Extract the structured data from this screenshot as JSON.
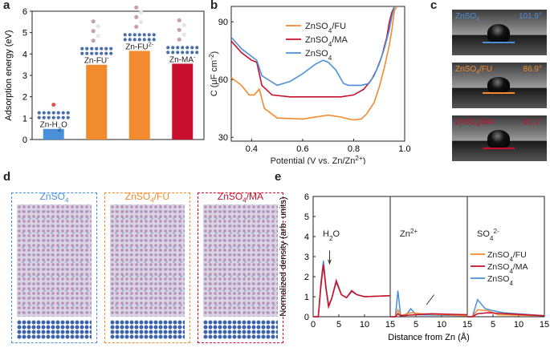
{
  "panels": {
    "a": "a",
    "b": "b",
    "c": "c",
    "d": "d",
    "e": "e"
  },
  "chart_data": [
    {
      "type": "bar",
      "id": "a",
      "ylabel": "Adsorption energy (eV)",
      "ylim": [
        0,
        6
      ],
      "yticks": [
        "0",
        "1",
        "2",
        "3",
        "4",
        "5",
        "6"
      ],
      "categories": [
        "Zn-H2O",
        "Zn-FU-",
        "Zn-FU2-",
        "Zn-MA-"
      ],
      "category_labels": [
        {
          "main": "Zn-H",
          "sub": "2",
          "tail": "O",
          "sup": ""
        },
        {
          "main": "Zn-FU",
          "sub": "",
          "tail": "",
          "sup": "-"
        },
        {
          "main": "Zn-FU",
          "sub": "",
          "tail": "",
          "sup": "2-"
        },
        {
          "main": "Zn-MA",
          "sub": "",
          "tail": "",
          "sup": "-"
        }
      ],
      "values": [
        0.5,
        3.5,
        4.15,
        3.55
      ],
      "colors": [
        "#4a90d9",
        "#f28a2e",
        "#f28a2e",
        "#c8102e"
      ]
    },
    {
      "type": "line",
      "id": "b",
      "xlabel": "Potential (V vs. Zn/Zn2+)",
      "xlabel_parts": {
        "main": "Potential (V vs. Zn/Zn",
        "sup": "2+",
        "tail": ")"
      },
      "ylabel": "C (μF cm-2)",
      "ylabel_parts": {
        "main": "C (μF cm",
        "sup": "-2",
        "tail": ")"
      },
      "xlim": [
        0.32,
        1.0
      ],
      "ylim": [
        28,
        98
      ],
      "xticks": [
        0.4,
        0.6,
        0.8,
        1.0
      ],
      "xtick_labels": [
        "0.4",
        "0.6",
        "0.8",
        "1.0"
      ],
      "yticks": [
        30,
        60,
        90
      ],
      "ytick_labels": [
        "30",
        "60",
        "90"
      ],
      "legend": "top-center",
      "series": [
        {
          "name": "ZnSO4/FU",
          "label": {
            "main": "ZnSO",
            "sub": "4",
            "tail": "/FU"
          },
          "color": "#f28a2e",
          "x": [
            0.32,
            0.36,
            0.39,
            0.41,
            0.43,
            0.45,
            0.5,
            0.6,
            0.7,
            0.75,
            0.78,
            0.8,
            0.83,
            0.85,
            0.88,
            0.9,
            0.92,
            0.94,
            0.95,
            0.96,
            0.97
          ],
          "y": [
            61,
            57,
            52,
            52,
            55,
            45,
            40,
            39.5,
            41.5,
            40.5,
            39.5,
            39,
            39.5,
            42,
            48,
            56,
            66,
            78,
            86,
            96,
            98
          ]
        },
        {
          "name": "ZnSO4/MA",
          "label": {
            "main": "ZnSO",
            "sub": "4",
            "tail": "/MA"
          },
          "color": "#c8102e",
          "x": [
            0.32,
            0.36,
            0.4,
            0.42,
            0.44,
            0.48,
            0.55,
            0.65,
            0.75,
            0.8,
            0.84,
            0.87,
            0.89,
            0.91,
            0.93,
            0.94,
            0.95,
            0.96
          ],
          "y": [
            80,
            74,
            70,
            69,
            57,
            52,
            51,
            51,
            51,
            52,
            55,
            60,
            65,
            72,
            82,
            90,
            95,
            98
          ]
        },
        {
          "name": "ZnSO4",
          "label": {
            "main": "ZnSO",
            "sub": "4",
            "tail": ""
          },
          "color": "#4a90d9",
          "x": [
            0.32,
            0.36,
            0.4,
            0.42,
            0.44,
            0.5,
            0.55,
            0.6,
            0.65,
            0.68,
            0.7,
            0.73,
            0.76,
            0.78,
            0.8,
            0.83,
            0.86,
            0.88,
            0.9,
            0.92,
            0.94,
            0.95,
            0.96
          ],
          "y": [
            82,
            76,
            72,
            70,
            62,
            57,
            59,
            63,
            68,
            70,
            69,
            65,
            58,
            57,
            57,
            57,
            58,
            62,
            68,
            76,
            86,
            93,
            98
          ]
        }
      ]
    },
    {
      "type": "line",
      "id": "e",
      "xlabel": "Distance from Zn (Å)",
      "ylabel": "Normalized density (arb. units)",
      "ylim": [
        0,
        6
      ],
      "yticks": [
        "0",
        "1",
        "2",
        "3",
        "4",
        "5",
        "6"
      ],
      "xtick_labels": [
        "0",
        "5",
        "10",
        "15",
        "5",
        "10",
        "15",
        "5",
        "10",
        "15"
      ],
      "sections": [
        {
          "label": {
            "main": "H",
            "sub": "2",
            "tail": "O",
            "sup": ""
          }
        },
        {
          "label": {
            "main": "Zn",
            "sub": "",
            "tail": "",
            "sup": "2+"
          }
        },
        {
          "label": {
            "main": "SO",
            "sub": "4",
            "tail": "",
            "sup": "2-"
          }
        }
      ],
      "legend": "center-right",
      "series": [
        {
          "name": "ZnSO4/FU",
          "color": "#f28a2e"
        },
        {
          "name": "ZnSO4/MA",
          "color": "#c8102e"
        },
        {
          "name": "ZnSO4",
          "color": "#4a90d9"
        }
      ]
    }
  ],
  "contact_angle": [
    {
      "label": "ZnSO4",
      "sub": "4",
      "main": "ZnSO",
      "tail": "",
      "angle": "101.9°",
      "color": "#4a90d9"
    },
    {
      "label": "ZnSO4/FU",
      "sub": "4",
      "main": "ZnSO",
      "tail": "/FU",
      "angle": "86.9°",
      "color": "#f28a2e"
    },
    {
      "label": "ZnSO4/MA",
      "sub": "4",
      "main": "ZnSO",
      "tail": "/MA",
      "angle": "91.1°",
      "color": "#c8102e"
    }
  ],
  "md": [
    {
      "main": "ZnSO",
      "sub": "4",
      "tail": "",
      "color": "#4a90d9"
    },
    {
      "main": "ZnSO",
      "sub": "4",
      "tail": "/FU",
      "color": "#f28a2e"
    },
    {
      "main": "ZnSO",
      "sub": "4",
      "tail": "/MA",
      "color": "#c8102e"
    }
  ]
}
